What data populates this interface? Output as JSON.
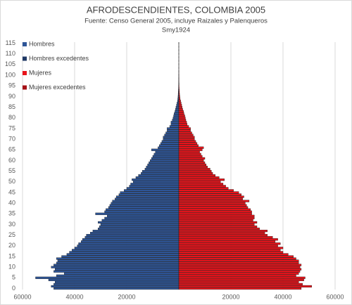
{
  "chart_data": {
    "type": "bar",
    "orientation": "horizontal-pyramid",
    "title": "AFRODESCENDIENTES, COLOMBIA 2005",
    "subtitle": "Fuente: Censo General 2005, incluye Raizales y Palenqueros",
    "author": "Smy1924",
    "legend": "top-left",
    "grid": true,
    "categories": [
      0,
      null,
      null,
      null,
      null,
      5,
      null,
      null,
      null,
      null,
      10,
      null,
      null,
      null,
      null,
      15,
      null,
      null,
      null,
      null,
      20,
      null,
      null,
      null,
      null,
      25,
      null,
      null,
      null,
      null,
      30,
      null,
      null,
      null,
      null,
      35,
      null,
      null,
      null,
      null,
      40,
      null,
      null,
      null,
      null,
      45,
      null,
      null,
      null,
      null,
      50,
      null,
      null,
      null,
      null,
      55,
      null,
      null,
      null,
      null,
      60,
      null,
      null,
      null,
      null,
      65,
      null,
      null,
      null,
      null,
      70,
      null,
      null,
      null,
      null,
      75,
      null,
      null,
      null,
      null,
      80,
      null,
      null,
      null,
      null,
      85,
      null,
      null,
      null,
      null,
      90,
      null,
      null,
      null,
      null,
      95,
      null,
      null,
      null,
      null,
      100,
      null,
      null,
      null,
      null,
      105,
      null,
      null,
      null,
      null,
      110,
      null,
      null,
      null,
      null,
      115
    ],
    "xlim": [
      -60000,
      60000
    ],
    "xticks": [
      {
        "value": -60000,
        "label": "60000"
      },
      {
        "value": -40000,
        "label": "40000"
      },
      {
        "value": -20000,
        "label": "20000"
      },
      20000,
      40000,
      60000
    ],
    "series": [
      {
        "name": "Hombres",
        "color": "#2e5597",
        "side": "left",
        "values": [
          48000,
          49000,
          48000,
          47500,
          50000,
          55000,
          47000,
          44000,
          48000,
          47500,
          49000,
          48000,
          47000,
          46500,
          47000,
          45000,
          43000,
          42000,
          41000,
          40000,
          39000,
          38500,
          37500,
          37000,
          36000,
          35500,
          34000,
          33000,
          31000,
          30500,
          30000,
          31000,
          29500,
          28500,
          27500,
          32000,
          28500,
          28000,
          27000,
          26500,
          26000,
          25500,
          24500,
          24000,
          23000,
          22500,
          21000,
          20000,
          19000,
          18500,
          17500,
          18000,
          16500,
          15500,
          14500,
          14000,
          13000,
          12500,
          12000,
          11500,
          11000,
          10500,
          10000,
          9500,
          9000,
          10500,
          8000,
          7500,
          7000,
          6500,
          6000,
          6000,
          5500,
          5000,
          4500,
          4500,
          3500,
          3000,
          3000,
          2500,
          2200,
          2000,
          1800,
          1500,
          1300,
          1100,
          900,
          700,
          500,
          400,
          300,
          250,
          200,
          150,
          120,
          100,
          80,
          60,
          50,
          40,
          30,
          20,
          15,
          10,
          8,
          6,
          5,
          4,
          3,
          2,
          2,
          1,
          1,
          1,
          1,
          1
        ]
      },
      {
        "name": "Hombres excedentes",
        "color": "#1f3864",
        "side": "left",
        "values": [
          0,
          0,
          0,
          0,
          0,
          0,
          0,
          0,
          0,
          0,
          0,
          0,
          0,
          0,
          0,
          0,
          0,
          0,
          0,
          0,
          0,
          0,
          0,
          0,
          0,
          0,
          0,
          0,
          0,
          0,
          0,
          0,
          0,
          0,
          0,
          0,
          0,
          0,
          0,
          0,
          0,
          0,
          0,
          0,
          0,
          0,
          0,
          0,
          0,
          0,
          0,
          0,
          0,
          0,
          0,
          0,
          0,
          0,
          0,
          0,
          0,
          0,
          0,
          0,
          0,
          0,
          0,
          0,
          0,
          0,
          0,
          0,
          0,
          0,
          0,
          0,
          0,
          0,
          0,
          0,
          0,
          0,
          0,
          0,
          0,
          0,
          0,
          0,
          0,
          0,
          0,
          0,
          0,
          0,
          0,
          0,
          0,
          0,
          0,
          0,
          0,
          0,
          0,
          0,
          0,
          0,
          0,
          0,
          0,
          0,
          0,
          0,
          0,
          0,
          0,
          0
        ]
      },
      {
        "name": "Mujeres",
        "color": "#e8131a",
        "side": "right",
        "values": [
          47000,
          51000,
          47500,
          46000,
          48000,
          48500,
          45000,
          46000,
          46500,
          47000,
          46500,
          47000,
          46000,
          46000,
          45000,
          44000,
          42000,
          40000,
          39000,
          40000,
          38000,
          39000,
          37000,
          38000,
          36000,
          34000,
          33000,
          34000,
          31000,
          30000,
          29000,
          30000,
          28500,
          29000,
          29000,
          28000,
          28000,
          27500,
          26500,
          26000,
          25500,
          27000,
          24500,
          25000,
          24000,
          23000,
          21000,
          19000,
          18000,
          17000,
          16000,
          17500,
          15500,
          14000,
          13000,
          12500,
          12000,
          11000,
          10500,
          10000,
          9500,
          10000,
          9000,
          8500,
          8000,
          9000,
          9500,
          7500,
          7000,
          6500,
          6000,
          6000,
          5500,
          5000,
          4500,
          4500,
          3800,
          3200,
          3000,
          2700,
          2500,
          2300,
          2000,
          1800,
          1500,
          1300,
          1100,
          900,
          700,
          500,
          400,
          300,
          250,
          200,
          150,
          120,
          100,
          80,
          60,
          50,
          30,
          20,
          15,
          10,
          8,
          6,
          5,
          4,
          3,
          2,
          2,
          1,
          1,
          1,
          1,
          1
        ]
      },
      {
        "name": "Mujeres excedentes",
        "color": "#a50f15",
        "side": "right",
        "values": [
          0,
          0,
          0,
          0,
          0,
          0,
          0,
          0,
          0,
          0,
          0,
          0,
          0,
          0,
          0,
          0,
          0,
          0,
          0,
          0,
          0,
          0,
          0,
          0,
          0,
          0,
          0,
          0,
          0,
          0,
          0,
          0,
          0,
          0,
          0,
          0,
          0,
          0,
          0,
          0,
          0,
          0,
          0,
          0,
          0,
          0,
          0,
          0,
          0,
          0,
          0,
          0,
          0,
          0,
          0,
          0,
          0,
          0,
          0,
          0,
          0,
          0,
          0,
          0,
          0,
          0,
          0,
          0,
          0,
          0,
          0,
          0,
          0,
          0,
          0,
          0,
          0,
          0,
          0,
          0,
          0,
          0,
          0,
          0,
          0,
          0,
          0,
          0,
          0,
          0,
          0,
          0,
          0,
          0,
          0,
          0,
          0,
          0,
          0,
          0,
          0,
          0,
          0,
          0,
          0,
          0,
          0,
          0,
          0,
          0,
          0,
          0,
          0,
          0,
          0,
          0
        ]
      }
    ]
  }
}
